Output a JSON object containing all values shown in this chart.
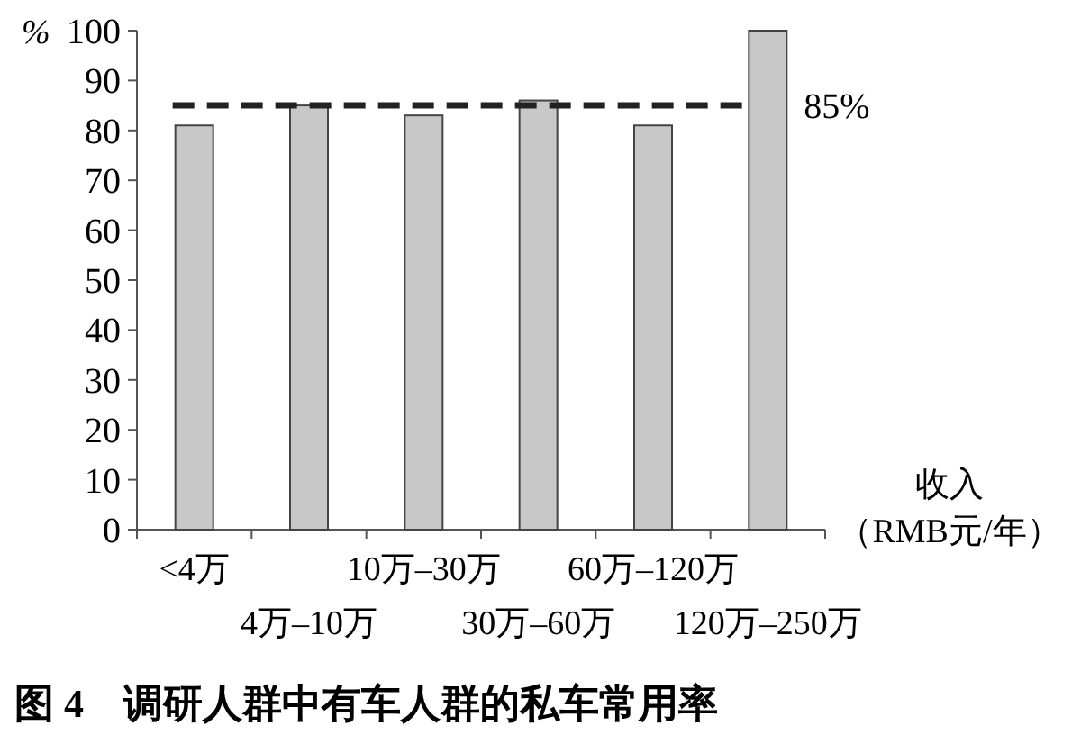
{
  "chart_data": {
    "type": "bar",
    "title": "图 4　调研人群中有车人群的私车常用率",
    "ylabel": "%",
    "xlabel": "收入（RMB元/年）",
    "categories": [
      "<4万",
      "4万–10万",
      "10万–30万",
      "30万–60万",
      "60万–120万",
      "120万–250万"
    ],
    "values": [
      81,
      85,
      83,
      86,
      81,
      100
    ],
    "color": "#c8c8c8",
    "ylim": [
      0,
      100
    ],
    "yticks": [
      0,
      10,
      20,
      30,
      40,
      50,
      60,
      70,
      80,
      90,
      100
    ],
    "grid": false,
    "ref_lines": [
      {
        "axis": "y",
        "value": 85,
        "label": "85%",
        "color": "#222222",
        "line_style": "dashed"
      }
    ]
  }
}
